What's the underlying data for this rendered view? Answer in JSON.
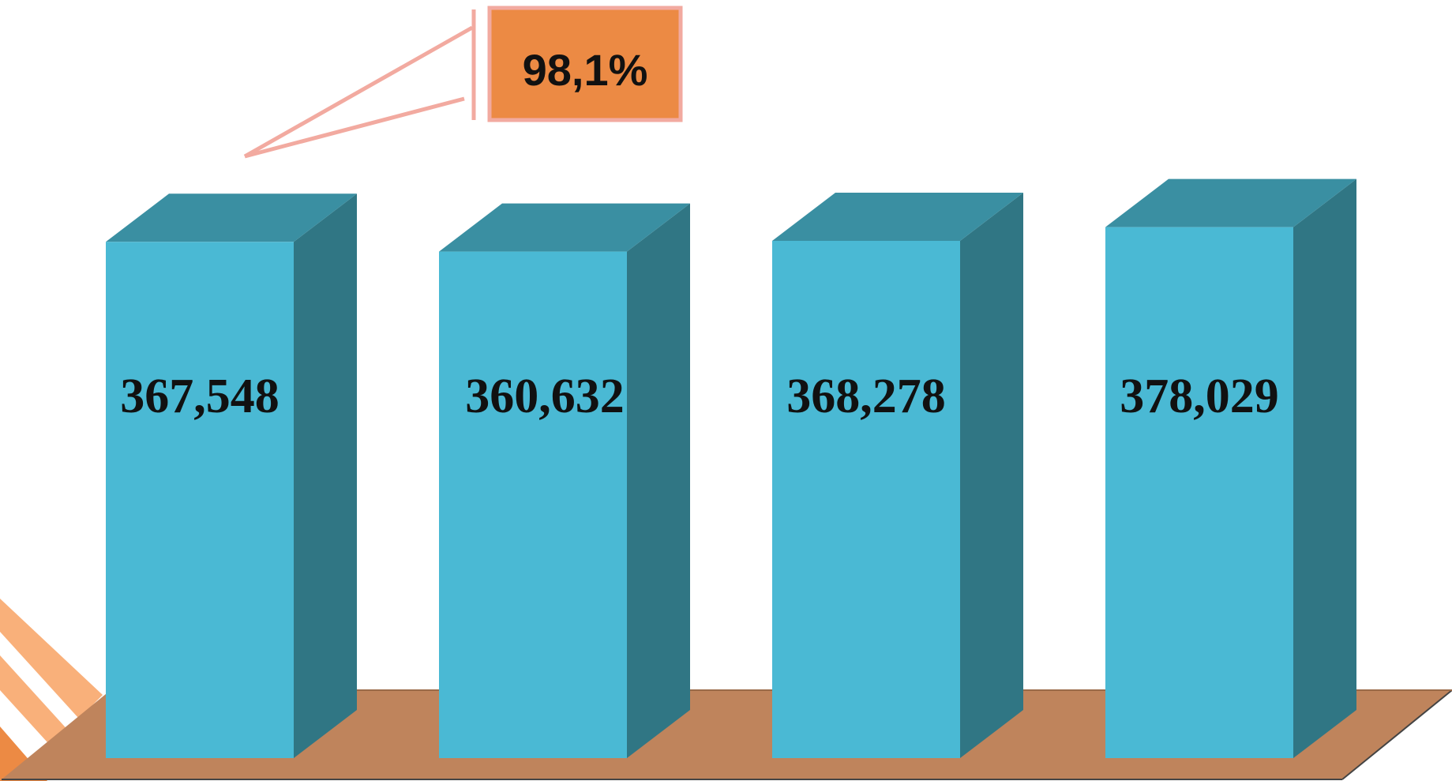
{
  "chart_data": {
    "type": "bar",
    "style": "3d-column",
    "categories": [],
    "values": [
      367548,
      360632,
      368278,
      378029
    ],
    "labels": [
      "367,548",
      "360,632",
      "368,278",
      "378,029"
    ],
    "ylim": [
      0,
      420000
    ],
    "grid": false,
    "legend": "none",
    "annotation": {
      "text": "98,1%",
      "points_to_bar": 0
    }
  },
  "colors": {
    "bar_front": "#4ab9d4",
    "bar_top": "#3a8fa2",
    "bar_side": "#307684",
    "floor": "#bf845c",
    "floor_edge": "#444444",
    "callout_fill": "#ec8a44",
    "callout_border": "#f2aaa0",
    "accent_stripe_light": "#f9b07a",
    "accent_stripe_dark": "#ec8a44"
  }
}
